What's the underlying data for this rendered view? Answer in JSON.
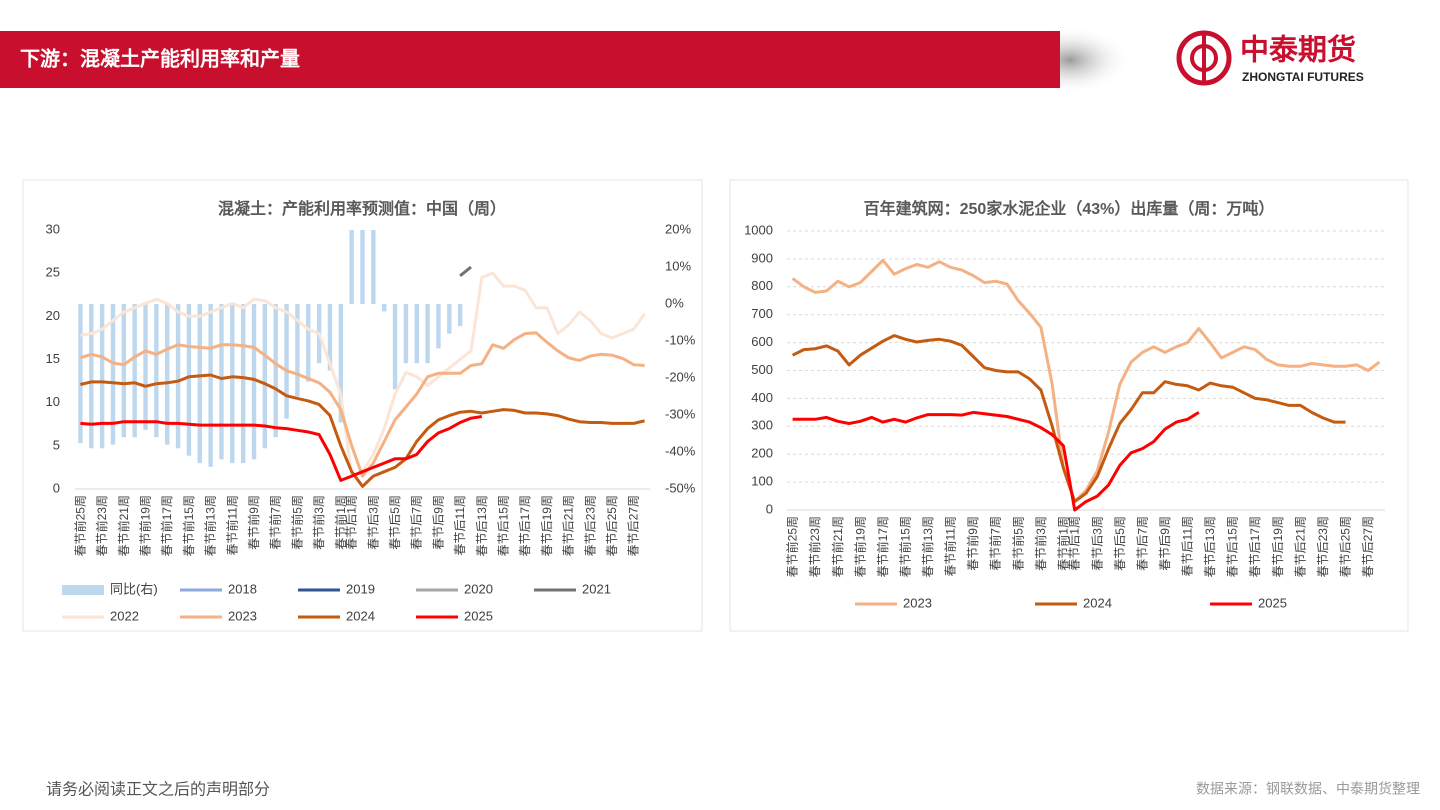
{
  "header": {
    "title": "下游：混凝土产能利用率和产量"
  },
  "logo": {
    "name": "中泰期货",
    "subname": "ZHONGTAI FUTURES"
  },
  "footer": {
    "disclaimer": "请务必阅读正文之后的声明部分",
    "source": "数据来源：钢联数据、中泰期货整理"
  },
  "chart_data": [
    {
      "type": "line",
      "title": "混凝土：产能利用率预测值：中国（周）",
      "categories": [
        "春节前25周",
        null,
        "春节前23周",
        null,
        "春节前21周",
        null,
        "春节前19周",
        null,
        "春节前17周",
        null,
        "春节前15周",
        null,
        "春节前13周",
        null,
        "春节前11周",
        null,
        "春节前9周",
        null,
        "春节前7周",
        null,
        "春节前5周",
        null,
        "春节前3周",
        null,
        "春节前1周",
        "春节后1周",
        null,
        "春节后3周",
        null,
        "春节后5周",
        null,
        "春节后7周",
        null,
        "春节后9周",
        null,
        "春节后11周",
        null,
        "春节后13周",
        null,
        "春节后15周",
        null,
        "春节后17周",
        null,
        "春节后19周",
        null,
        "春节后21周",
        null,
        "春节后23周",
        null,
        "春节后25周",
        null,
        "春节后27周",
        null
      ],
      "ylim": [
        0,
        30
      ],
      "yticks": [
        0,
        5,
        10,
        15,
        20,
        25,
        30
      ],
      "y2lim": [
        -50,
        20
      ],
      "y2ticks": [
        {
          "value": -50,
          "label": "-50%"
        },
        {
          "value": -40,
          "label": "-40%"
        },
        {
          "value": -30,
          "label": "-30%"
        },
        {
          "value": -20,
          "label": "-20%"
        },
        {
          "value": -10,
          "label": "-10%"
        },
        {
          "value": 0,
          "label": "0%"
        },
        {
          "value": 10,
          "label": "10%"
        },
        {
          "value": 20,
          "label": "20%"
        }
      ],
      "grid": false,
      "series": [
        {
          "name": "同比(右)",
          "type": "bar",
          "axis": "y2",
          "color": "#bdd7ee",
          "values": [
            -37.6,
            -39,
            -39,
            -38,
            -36,
            -36,
            -34,
            -36,
            -38,
            -39,
            -41,
            -43,
            -44,
            -42,
            -43,
            -43,
            -42,
            -39,
            -36,
            -31,
            -25,
            -21,
            -16,
            -18,
            -32,
            20,
            20,
            20,
            -2,
            -23,
            -16,
            -16,
            -16,
            -12,
            -8,
            -6,
            null,
            null,
            null,
            null,
            null,
            null,
            null,
            null,
            null,
            null,
            null,
            null,
            null,
            null,
            null,
            null,
            null
          ]
        },
        {
          "name": "2018",
          "color": "#8faadc",
          "values": [
            null,
            null,
            null,
            null,
            null,
            null,
            null,
            null,
            null,
            null,
            null,
            null,
            null,
            null,
            null,
            null,
            null,
            null,
            null,
            null,
            null,
            null,
            null,
            null,
            null,
            null,
            null,
            null,
            null,
            null,
            null,
            null,
            null,
            null,
            null,
            null,
            null,
            null,
            null,
            null,
            null,
            null,
            null,
            null,
            null,
            null,
            null,
            null,
            null,
            null,
            null,
            null,
            null
          ]
        },
        {
          "name": "2019",
          "color": "#2f5597",
          "values": [
            null,
            null,
            null,
            null,
            null,
            null,
            null,
            null,
            null,
            null,
            null,
            null,
            null,
            null,
            null,
            null,
            null,
            null,
            null,
            null,
            null,
            null,
            null,
            null,
            null,
            null,
            null,
            null,
            null,
            null,
            null,
            null,
            null,
            null,
            null,
            null,
            null,
            null,
            null,
            null,
            null,
            null,
            null,
            null,
            null,
            null,
            null,
            null,
            null,
            null,
            null,
            null,
            null
          ]
        },
        {
          "name": "2020",
          "color": "#a6a6a6",
          "values": [
            null,
            null,
            null,
            null,
            null,
            null,
            null,
            null,
            null,
            null,
            null,
            null,
            null,
            null,
            null,
            null,
            null,
            null,
            null,
            null,
            null,
            null,
            null,
            null,
            null,
            null,
            null,
            null,
            null,
            null,
            null,
            null,
            null,
            null,
            null,
            null,
            null,
            null,
            null,
            null,
            null,
            null,
            null,
            null,
            null,
            null,
            null,
            null,
            null,
            null,
            null,
            null,
            null
          ]
        },
        {
          "name": "2021",
          "color": "#767171",
          "values": [
            null,
            null,
            null,
            null,
            null,
            null,
            null,
            null,
            null,
            null,
            null,
            null,
            null,
            null,
            null,
            null,
            null,
            null,
            null,
            null,
            null,
            null,
            null,
            null,
            null,
            null,
            null,
            null,
            null,
            null,
            null,
            null,
            null,
            null,
            null,
            24.7,
            25.7,
            null,
            null,
            null,
            null,
            null,
            null,
            null,
            null,
            null,
            null,
            null,
            null,
            null,
            null,
            null,
            null
          ]
        },
        {
          "name": "2022",
          "color": "#fbe5d6",
          "values": [
            17.8,
            18,
            18.5,
            19.5,
            20.5,
            21,
            21.5,
            22,
            21.5,
            20.5,
            20,
            20,
            20.5,
            21,
            21.5,
            21,
            22,
            21.8,
            21,
            20.5,
            19.5,
            18.5,
            18,
            14.5,
            11,
            1.5,
            2,
            4,
            7,
            11,
            13.5,
            13,
            12,
            13,
            14,
            15,
            16,
            24.5,
            25,
            23.5,
            23.5,
            23,
            21,
            21,
            18,
            19,
            20.5,
            19.5,
            18,
            17.5,
            18,
            18.5,
            20.3
          ]
        },
        {
          "name": "2023",
          "color": "#f4b183",
          "values": [
            15.2,
            15.6,
            15.3,
            14.6,
            14.4,
            15.3,
            16,
            15.6,
            16.2,
            16.7,
            16.5,
            16.4,
            16.3,
            16.7,
            16.7,
            16.6,
            16.4,
            15.5,
            14.5,
            13.7,
            13.3,
            12.8,
            12.3,
            11.2,
            9.2,
            5,
            1.5,
            3,
            5.5,
            8,
            9.5,
            11,
            13,
            13.4,
            13.4,
            13.4,
            14.3,
            14.5,
            16.7,
            16.3,
            17.3,
            18,
            18.1,
            17,
            16,
            15.2,
            14.9,
            15.4,
            15.6,
            15.5,
            15.1,
            14.4,
            14.3
          ]
        },
        {
          "name": "2024",
          "color": "#c55a11",
          "values": [
            12.1,
            12.4,
            12.4,
            12.3,
            12.2,
            12.3,
            11.9,
            12.2,
            12.3,
            12.5,
            13,
            13.1,
            13.2,
            12.8,
            13,
            12.9,
            12.7,
            12.2,
            11.6,
            10.8,
            10.5,
            10.2,
            9.8,
            8.5,
            5,
            2,
            0.3,
            1.5,
            2,
            2.5,
            3.5,
            5.5,
            7,
            8,
            8.5,
            8.9,
            9,
            8.8,
            9,
            9.2,
            9.1,
            8.8,
            8.8,
            8.7,
            8.5,
            8.1,
            7.8,
            7.7,
            7.7,
            7.6,
            7.6,
            7.6,
            7.9
          ]
        },
        {
          "name": "2025",
          "color": "#ff0000",
          "values": [
            7.6,
            7.5,
            7.6,
            7.6,
            7.8,
            7.8,
            7.8,
            7.8,
            7.6,
            7.6,
            7.5,
            7.4,
            7.4,
            7.4,
            7.4,
            7.4,
            7.4,
            7.3,
            7.1,
            7,
            6.8,
            6.6,
            6.3,
            4,
            1,
            1.5,
            2,
            2.5,
            3,
            3.5,
            3.5,
            4,
            5.5,
            6.5,
            7,
            7.7,
            8.2,
            8.4,
            null,
            null,
            null,
            null,
            null,
            null,
            null,
            null,
            null,
            null,
            null,
            null,
            null,
            null,
            null
          ]
        }
      ]
    },
    {
      "type": "line",
      "title": "百年建筑网：250家水泥企业（43%）出库量（周：万吨）",
      "categories": [
        "春节前25周",
        null,
        "春节前23周",
        null,
        "春节前21周",
        null,
        "春节前19周",
        null,
        "春节前17周",
        null,
        "春节前15周",
        null,
        "春节前13周",
        null,
        "春节前11周",
        null,
        "春节前9周",
        null,
        "春节前7周",
        null,
        "春节前5周",
        null,
        "春节前3周",
        null,
        "春节前1周",
        "春节后1周",
        null,
        "春节后3周",
        null,
        "春节后5周",
        null,
        "春节后7周",
        null,
        "春节后9周",
        null,
        "春节后11周",
        null,
        "春节后13周",
        null,
        "春节后15周",
        null,
        "春节后17周",
        null,
        "春节后19周",
        null,
        "春节后21周",
        null,
        "春节后23周",
        null,
        "春节后25周",
        null,
        "春节后27周",
        null
      ],
      "ylim": [
        0,
        1000
      ],
      "yticks": [
        0,
        100,
        200,
        300,
        400,
        500,
        600,
        700,
        800,
        900,
        1000
      ],
      "grid": true,
      "series": [
        {
          "name": "2023",
          "color": "#f4b183",
          "values": [
            830,
            800,
            780,
            785,
            820,
            800,
            815,
            855,
            895,
            845,
            865,
            880,
            870,
            890,
            870,
            860,
            840,
            815,
            820,
            810,
            750,
            705,
            655,
            450,
            150,
            30,
            70,
            140,
            280,
            450,
            530,
            565,
            585,
            565,
            585,
            600,
            650,
            600,
            545,
            565,
            585,
            575,
            540,
            520,
            515,
            515,
            525,
            520,
            515,
            515,
            520,
            500,
            530
          ]
        },
        {
          "name": "2024",
          "color": "#c55a11",
          "values": [
            555,
            575,
            578,
            588,
            570,
            520,
            555,
            580,
            605,
            625,
            612,
            602,
            608,
            612,
            605,
            590,
            550,
            510,
            500,
            495,
            495,
            470,
            430,
            300,
            150,
            30,
            60,
            120,
            220,
            310,
            360,
            420,
            420,
            460,
            450,
            445,
            430,
            455,
            445,
            440,
            420,
            400,
            395,
            385,
            375,
            375,
            350,
            330,
            315,
            315,
            null,
            null,
            null
          ]
        },
        {
          "name": "2025",
          "color": "#ff0000",
          "values": [
            325,
            325,
            325,
            332,
            318,
            310,
            318,
            332,
            315,
            325,
            315,
            330,
            342,
            342,
            342,
            340,
            350,
            345,
            340,
            335,
            325,
            315,
            295,
            270,
            230,
            0,
            30,
            50,
            90,
            160,
            205,
            220,
            245,
            290,
            315,
            325,
            350,
            null,
            null,
            null,
            null,
            null,
            null,
            null,
            null,
            null,
            null,
            null,
            null,
            null,
            null,
            null,
            null
          ]
        }
      ]
    }
  ]
}
